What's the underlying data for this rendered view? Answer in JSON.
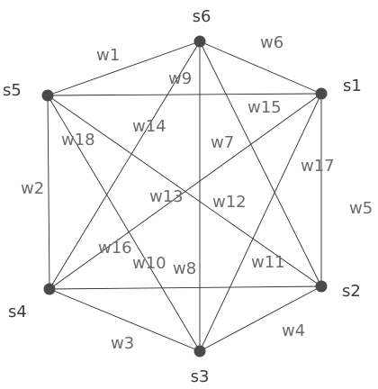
{
  "nodes": {
    "s1": "s1",
    "s2": "s2",
    "s3": "s3",
    "s4": "s4",
    "s5": "s5",
    "s6": "s6"
  },
  "edges": {
    "w1": "w1",
    "w2": "w2",
    "w3": "w3",
    "w4": "w4",
    "w5": "w5",
    "w6": "w6",
    "w7": "w7",
    "w8": "w8",
    "w9": "w9",
    "w10": "w10",
    "w11": "w11",
    "w12": "w12",
    "w13": "w13",
    "w14": "w14",
    "w15": "w15",
    "w16": "w16",
    "w17": "w17",
    "w18": "w18"
  },
  "colors": {
    "edge": "#2e2e2e",
    "node": "#4a4a4a",
    "node_label": "#3c3c3c",
    "edge_label": "#6b6b6b"
  }
}
